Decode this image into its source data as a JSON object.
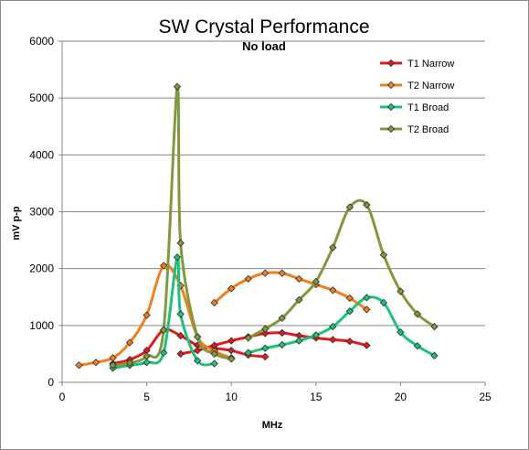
{
  "chart_data": {
    "type": "line",
    "title": "SW Crystal Performance",
    "subtitle": "No load",
    "xlabel": "MHz",
    "ylabel": "mV p-p",
    "xlim": [
      0,
      25
    ],
    "ylim": [
      0,
      6000
    ],
    "x_ticks": [
      0,
      5,
      10,
      15,
      20,
      25
    ],
    "y_ticks": [
      0,
      1000,
      2000,
      3000,
      4000,
      5000,
      6000
    ],
    "grid": "horizontal",
    "legend_position": "top-right",
    "series": [
      {
        "name": "T1 Narrow",
        "color": "#e31a1c",
        "segments": [
          [
            [
              3,
              330
            ],
            [
              4,
              400
            ],
            [
              5,
              560
            ],
            [
              6,
              920
            ],
            [
              7,
              820
            ],
            [
              8,
              650
            ],
            [
              9,
              600
            ],
            [
              10,
              560
            ],
            [
              11,
              480
            ],
            [
              12,
              450
            ]
          ],
          [
            [
              7,
              500
            ],
            [
              8,
              560
            ],
            [
              9,
              650
            ],
            [
              10,
              730
            ],
            [
              11,
              800
            ],
            [
              12,
              860
            ],
            [
              13,
              870
            ],
            [
              14,
              820
            ],
            [
              15,
              780
            ],
            [
              16,
              750
            ],
            [
              17,
              720
            ],
            [
              18,
              650
            ]
          ]
        ]
      },
      {
        "name": "T2 Narrow",
        "color": "#f07f1c",
        "segments": [
          [
            [
              1,
              300
            ],
            [
              2,
              350
            ],
            [
              3,
              430
            ],
            [
              4,
              700
            ],
            [
              5,
              1180
            ],
            [
              6,
              2050
            ],
            [
              7,
              1700
            ],
            [
              8,
              800
            ],
            [
              9,
              550
            ],
            [
              10,
              430
            ]
          ],
          [
            [
              9,
              1400
            ],
            [
              10,
              1650
            ],
            [
              11,
              1820
            ],
            [
              12,
              1920
            ],
            [
              13,
              1920
            ],
            [
              14,
              1820
            ],
            [
              15,
              1720
            ],
            [
              16,
              1620
            ],
            [
              17,
              1480
            ],
            [
              18,
              1280
            ]
          ]
        ]
      },
      {
        "name": "T1 Broad",
        "color": "#1fc07a",
        "segments": [
          [
            [
              3,
              250
            ],
            [
              4,
              300
            ],
            [
              5,
              350
            ],
            [
              6,
              520
            ],
            [
              6.8,
              2200
            ],
            [
              7,
              1200
            ],
            [
              8,
              380
            ],
            [
              9,
              330
            ]
          ],
          [
            [
              11,
              520
            ],
            [
              12,
              600
            ],
            [
              13,
              660
            ],
            [
              14,
              730
            ],
            [
              15,
              830
            ],
            [
              16,
              980
            ],
            [
              17,
              1250
            ],
            [
              18,
              1490
            ],
            [
              19,
              1400
            ],
            [
              20,
              880
            ],
            [
              21,
              640
            ],
            [
              22,
              470
            ]
          ]
        ]
      },
      {
        "name": "T2 Broad",
        "color": "#7f9a3a",
        "segments": [
          [
            [
              3,
              300
            ],
            [
              4,
              340
            ],
            [
              5,
              460
            ],
            [
              6,
              920
            ],
            [
              6.8,
              5200
            ],
            [
              7,
              2450
            ],
            [
              8,
              800
            ],
            [
              9,
              500
            ],
            [
              10,
              410
            ]
          ],
          [
            [
              11,
              780
            ],
            [
              12,
              940
            ],
            [
              13,
              1130
            ],
            [
              14,
              1450
            ],
            [
              15,
              1770
            ],
            [
              16,
              2370
            ],
            [
              17,
              3080
            ],
            [
              18,
              3120
            ],
            [
              19,
              2240
            ],
            [
              20,
              1600
            ],
            [
              21,
              1200
            ],
            [
              22,
              980
            ]
          ]
        ]
      }
    ]
  }
}
